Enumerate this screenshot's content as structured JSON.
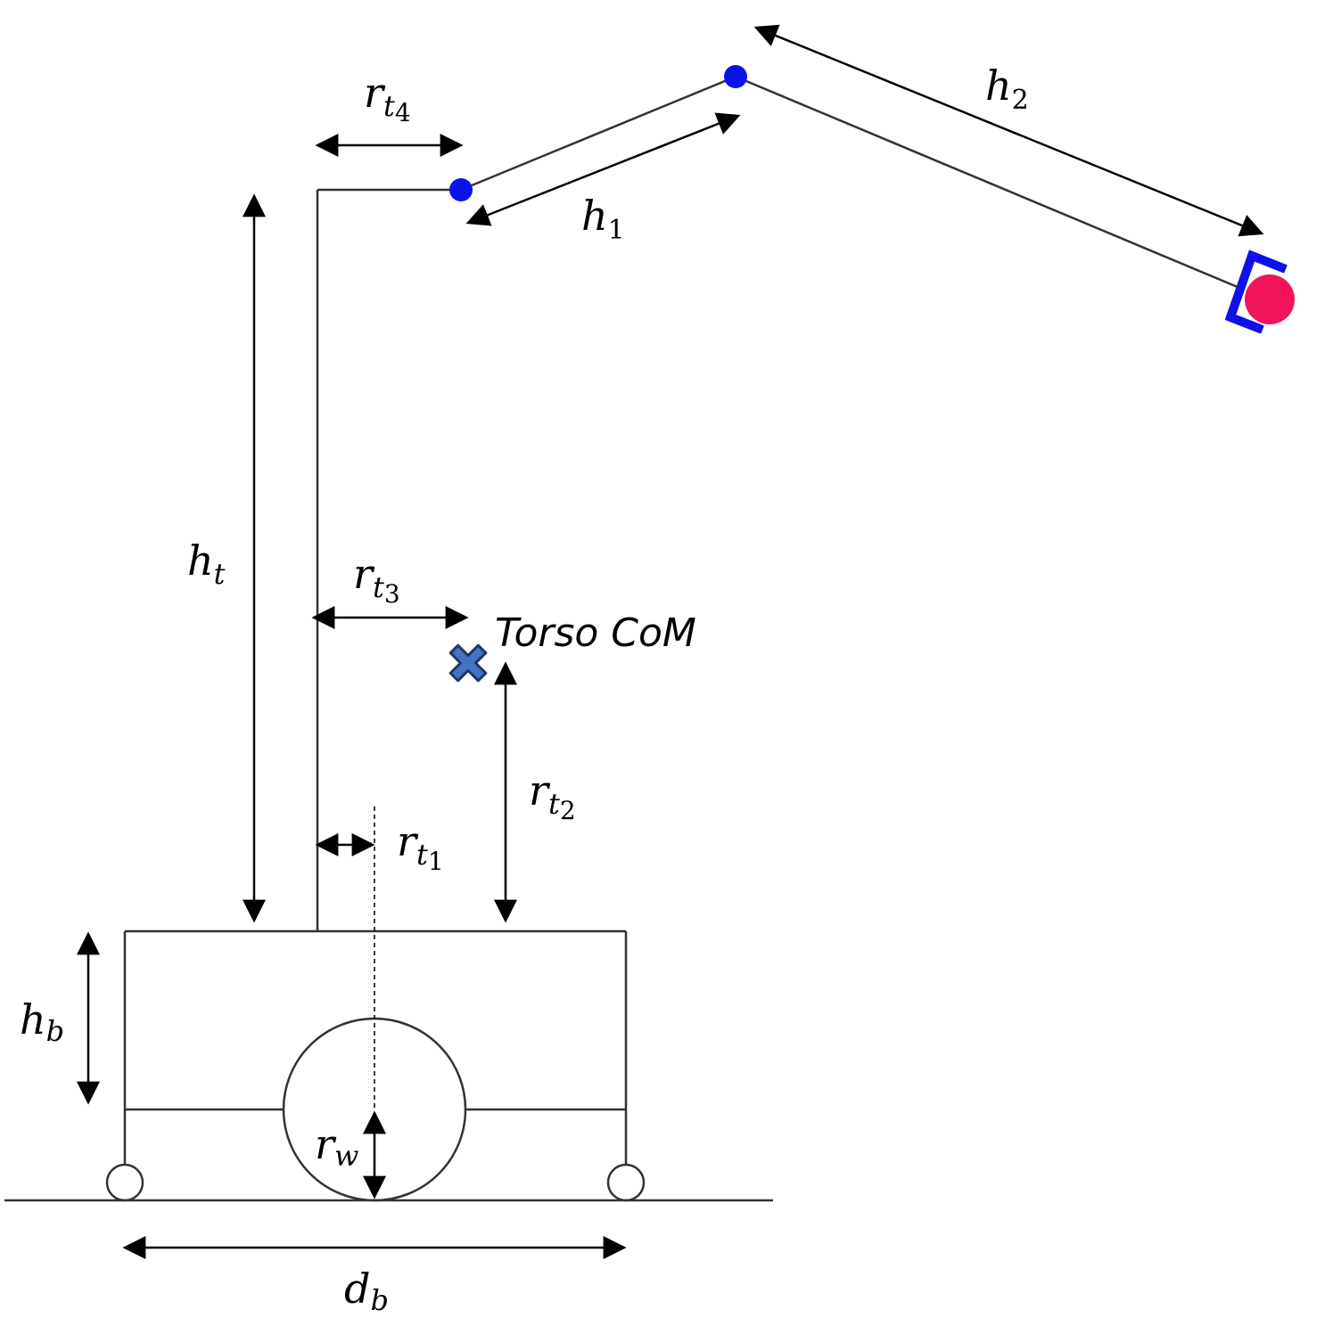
{
  "colors": {
    "line": "#333333",
    "arrow": "#000000",
    "joint": "#0a14e6",
    "gripper": "#1010e8",
    "target": "#f0145a",
    "com_fill": "#4472c4",
    "com_stroke": "#203864"
  },
  "icons": {
    "joint": "filled-blue-circle",
    "gripper": "bracket-shape",
    "target": "filled-red-circle",
    "com": "cross-marker"
  },
  "labels": {
    "rt4": {
      "base": "r",
      "sub": "t",
      "subsub": "4"
    },
    "h2": {
      "base": "h",
      "sub": "2"
    },
    "h1": {
      "base": "h",
      "sub": "1"
    },
    "ht": {
      "base": "h",
      "sub": "t"
    },
    "rt3": {
      "base": "r",
      "sub": "t",
      "subsub": "3"
    },
    "rt2": {
      "base": "r",
      "sub": "t",
      "subsub": "2"
    },
    "rt1": {
      "base": "r",
      "sub": "t",
      "subsub": "1"
    },
    "hb": {
      "base": "h",
      "sub": "b"
    },
    "rw": {
      "base": "r",
      "sub": "w"
    },
    "db": {
      "base": "d",
      "sub": "b"
    },
    "torso_com": "Torso CoM"
  }
}
